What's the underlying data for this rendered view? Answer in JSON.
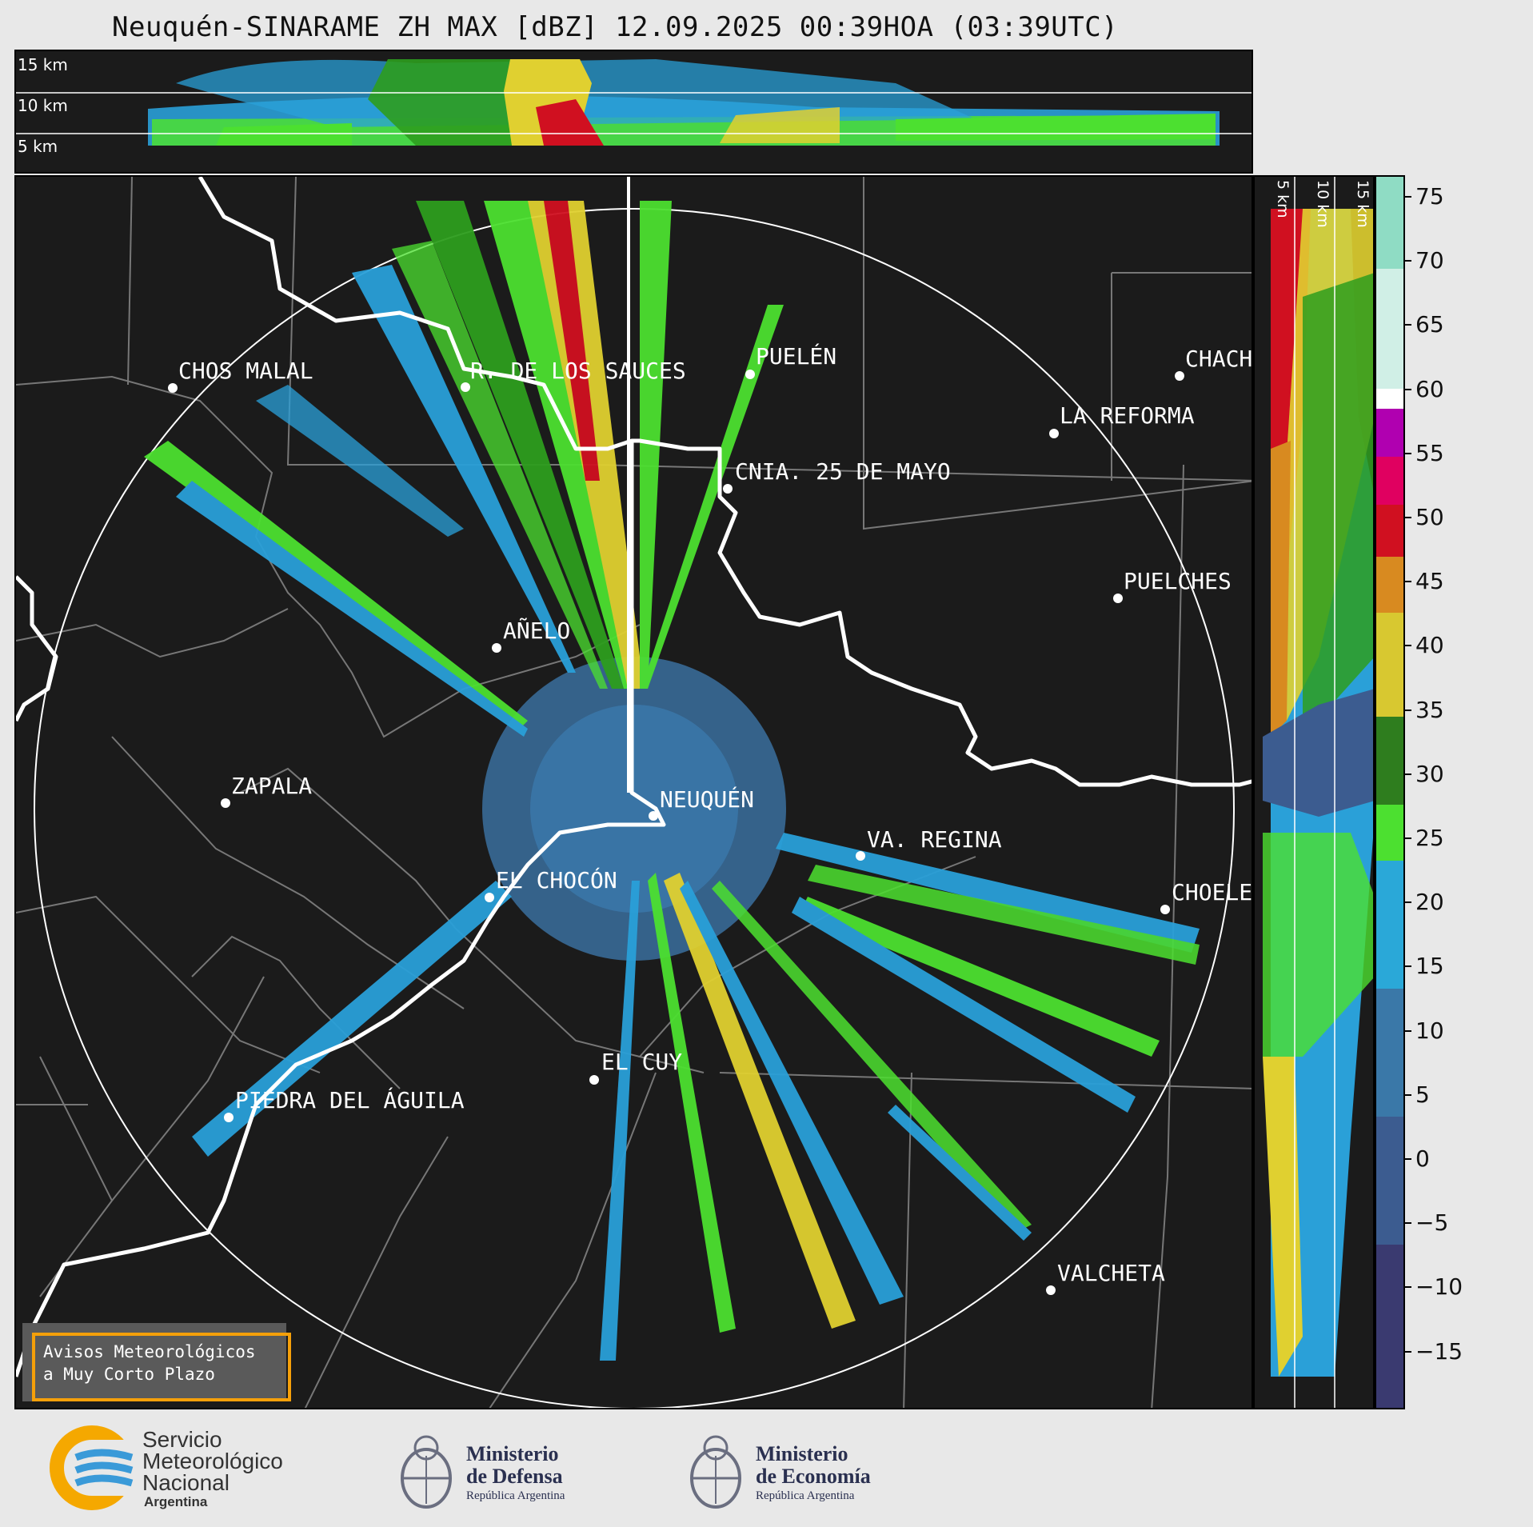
{
  "title": "Neuquén-SINARAME ZH MAX [dBZ] 12.09.2025 00:39HOA (03:39UTC)",
  "top_panel": {
    "height_labels": [
      "15 km",
      "10 km",
      "5 km"
    ]
  },
  "side_panel": {
    "height_labels": [
      "5 km",
      "10 km",
      "15 km"
    ]
  },
  "cities": [
    {
      "name": "CHOS MALAL"
    },
    {
      "name": "R. DE LOS SAUCES"
    },
    {
      "name": "PUELÉN"
    },
    {
      "name": "CHACH"
    },
    {
      "name": "LA REFORMA"
    },
    {
      "name": "CNIA. 25 DE MAYO"
    },
    {
      "name": "PUELCHES"
    },
    {
      "name": "AÑELO"
    },
    {
      "name": "ZAPALA"
    },
    {
      "name": "NEUQUÉN"
    },
    {
      "name": "VA. REGINA"
    },
    {
      "name": "EL CHOCÓN"
    },
    {
      "name": "CHOELE"
    },
    {
      "name": "EL CUY"
    },
    {
      "name": "PIEDRA DEL ÁGUILA"
    },
    {
      "name": "VALCHETA"
    }
  ],
  "avisos": {
    "line1": "Avisos Meteorológicos",
    "line2": "a Muy Corto Plazo"
  },
  "colorbar": {
    "unit": "dBZ",
    "ticks": [
      "75",
      "70",
      "65",
      "60",
      "55",
      "50",
      "45",
      "40",
      "35",
      "30",
      "25",
      "20",
      "15",
      "10",
      "5",
      "0",
      "−5",
      "−10",
      "−15"
    ],
    "colors": {
      "v75": "#8fdcc4",
      "v65": "#d0efe6",
      "v60": "#ffffff",
      "v55": "#b000b0",
      "v50": "#e00060",
      "v45": "#d01020",
      "v40": "#d88a20",
      "v35": "#d8c830",
      "v30": "#2e7d1e",
      "v20": "#4ce030",
      "v15": "#2aa8d8",
      "v5": "#3a78a8",
      "v0": "#3c5c90",
      "vm15": "#3a3a70"
    }
  },
  "footer": {
    "smn_line1": "Servicio",
    "smn_line2": "Meteorológico",
    "smn_line3": "Nacional",
    "smn_line4": "Argentina",
    "defensa_line1": "Ministerio",
    "defensa_line2": "de Defensa",
    "defensa_sub": "República Argentina",
    "economia_line1": "Ministerio",
    "economia_line2": "de Economía",
    "economia_sub": "República Argentina"
  }
}
